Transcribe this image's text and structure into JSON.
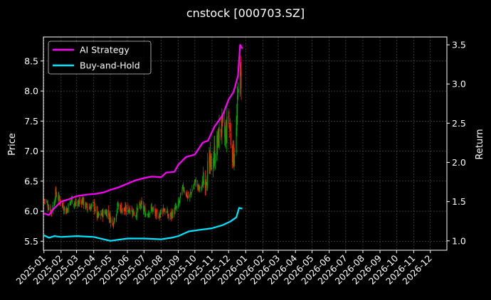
{
  "chart_data": {
    "type": "line",
    "title": "cnstock [000703.SZ]",
    "ylabel": "Price",
    "y2label": "Return",
    "ylim": [
      5.35,
      8.9
    ],
    "y2lim": [
      0.88,
      3.6
    ],
    "xlim": [
      "2024-12-31",
      "2026-12-31"
    ],
    "grid": true,
    "legend_position": "top-left",
    "y_ticks": [
      "5.5",
      "6.0",
      "6.5",
      "7.0",
      "7.5",
      "8.0",
      "8.5"
    ],
    "y2_ticks": [
      "1.0",
      "1.5",
      "2.0",
      "2.5",
      "3.0",
      "3.5"
    ],
    "x_ticks": [
      "2025-01",
      "2025-02",
      "2025-03",
      "2025-04",
      "2025-05",
      "2025-06",
      "2025-07",
      "2025-08",
      "2025-09",
      "2025-10",
      "2025-11",
      "2025-12",
      "2026-01",
      "2026-02",
      "2026-03",
      "2026-04",
      "2026-05",
      "2026-06",
      "2026-07",
      "2026-08",
      "2026-09",
      "2026-10",
      "2026-11",
      "2026-12"
    ],
    "candles_color_up": "#00aa00",
    "candles_color_down": "#ff2200",
    "price_path": [
      [
        "2025-01-01",
        6.2
      ],
      [
        "2025-01-08",
        6.1
      ],
      [
        "2025-01-15",
        6.0
      ],
      [
        "2025-01-22",
        6.3
      ],
      [
        "2025-02-01",
        6.15
      ],
      [
        "2025-02-10",
        6.0
      ],
      [
        "2025-02-20",
        6.2
      ],
      [
        "2025-03-01",
        6.1
      ],
      [
        "2025-03-10",
        6.2
      ],
      [
        "2025-03-20",
        6.05
      ],
      [
        "2025-04-01",
        6.1
      ],
      [
        "2025-04-08",
        5.9
      ],
      [
        "2025-04-15",
        5.95
      ],
      [
        "2025-04-25",
        6.0
      ],
      [
        "2025-05-05",
        5.8
      ],
      [
        "2025-05-15",
        6.1
      ],
      [
        "2025-05-25",
        6.0
      ],
      [
        "2025-06-05",
        6.05
      ],
      [
        "2025-06-15",
        5.95
      ],
      [
        "2025-06-25",
        6.1
      ],
      [
        "2025-07-05",
        5.95
      ],
      [
        "2025-07-15",
        6.05
      ],
      [
        "2025-07-25",
        5.9
      ],
      [
        "2025-08-05",
        6.05
      ],
      [
        "2025-08-15",
        5.9
      ],
      [
        "2025-08-25",
        6.0
      ],
      [
        "2025-09-01",
        6.1
      ],
      [
        "2025-09-10",
        6.4
      ],
      [
        "2025-09-20",
        6.2
      ],
      [
        "2025-10-01",
        6.5
      ],
      [
        "2025-10-10",
        6.35
      ],
      [
        "2025-10-20",
        6.6
      ],
      [
        "2025-11-01",
        6.8
      ],
      [
        "2025-11-10",
        7.1
      ],
      [
        "2025-11-18",
        7.45
      ],
      [
        "2025-11-25",
        7.2
      ],
      [
        "2025-12-01",
        7.6
      ],
      [
        "2025-12-05",
        7.2
      ],
      [
        "2025-12-10",
        6.9
      ],
      [
        "2025-12-15",
        7.3
      ],
      [
        "2025-12-20",
        8.4
      ],
      [
        "2025-12-24",
        8.2
      ]
    ],
    "series": [
      {
        "name": "AI Strategy",
        "color": "#ff00ff",
        "axis": "right",
        "points": [
          [
            "2025-01-01",
            1.35
          ],
          [
            "2025-01-10",
            1.33
          ],
          [
            "2025-01-20",
            1.42
          ],
          [
            "2025-02-01",
            1.5
          ],
          [
            "2025-02-15",
            1.53
          ],
          [
            "2025-03-01",
            1.57
          ],
          [
            "2025-03-20",
            1.59
          ],
          [
            "2025-04-05",
            1.6
          ],
          [
            "2025-04-20",
            1.62
          ],
          [
            "2025-05-01",
            1.65
          ],
          [
            "2025-05-15",
            1.68
          ],
          [
            "2025-06-01",
            1.73
          ],
          [
            "2025-06-15",
            1.77
          ],
          [
            "2025-07-01",
            1.8
          ],
          [
            "2025-07-15",
            1.82
          ],
          [
            "2025-08-01",
            1.81
          ],
          [
            "2025-08-10",
            1.87
          ],
          [
            "2025-08-25",
            1.88
          ],
          [
            "2025-09-01",
            1.97
          ],
          [
            "2025-09-15",
            2.07
          ],
          [
            "2025-10-01",
            2.1
          ],
          [
            "2025-10-15",
            2.25
          ],
          [
            "2025-10-25",
            2.28
          ],
          [
            "2025-11-05",
            2.45
          ],
          [
            "2025-11-20",
            2.6
          ],
          [
            "2025-12-01",
            2.8
          ],
          [
            "2025-12-10",
            2.9
          ],
          [
            "2025-12-18",
            3.1
          ],
          [
            "2025-12-22",
            3.5
          ],
          [
            "2025-12-26",
            3.45
          ]
        ]
      },
      {
        "name": "Buy-and-Hold",
        "color": "#00e5ff",
        "axis": "right",
        "points": [
          [
            "2025-01-01",
            1.07
          ],
          [
            "2025-01-10",
            1.04
          ],
          [
            "2025-01-20",
            1.06
          ],
          [
            "2025-02-01",
            1.05
          ],
          [
            "2025-03-01",
            1.06
          ],
          [
            "2025-04-01",
            1.05
          ],
          [
            "2025-05-01",
            1.0
          ],
          [
            "2025-06-01",
            1.03
          ],
          [
            "2025-07-01",
            1.03
          ],
          [
            "2025-08-01",
            1.02
          ],
          [
            "2025-08-20",
            1.04
          ],
          [
            "2025-09-01",
            1.06
          ],
          [
            "2025-09-20",
            1.12
          ],
          [
            "2025-10-10",
            1.14
          ],
          [
            "2025-11-01",
            1.16
          ],
          [
            "2025-11-20",
            1.2
          ],
          [
            "2025-12-05",
            1.25
          ],
          [
            "2025-12-15",
            1.3
          ],
          [
            "2025-12-20",
            1.42
          ],
          [
            "2025-12-26",
            1.41
          ]
        ]
      }
    ]
  }
}
